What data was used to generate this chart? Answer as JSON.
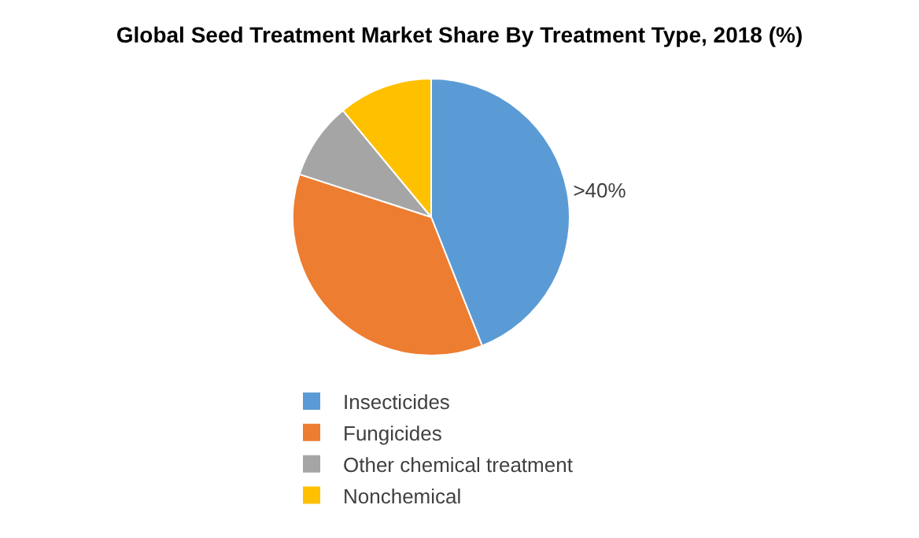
{
  "chart_data": {
    "type": "pie",
    "title": "Global Seed Treatment Market Share By Treatment Type, 2018 (%)",
    "categories": [
      "Insecticides",
      "Fungicides",
      "Other chemical treatment",
      "Nonchemical"
    ],
    "values": [
      44,
      36,
      9,
      11
    ],
    "colors": [
      "#5b9bd5",
      "#ed7d31",
      "#a5a5a5",
      "#ffc000"
    ],
    "value_labels": [
      ">40%",
      null,
      null,
      null
    ],
    "legend": "bottom"
  }
}
